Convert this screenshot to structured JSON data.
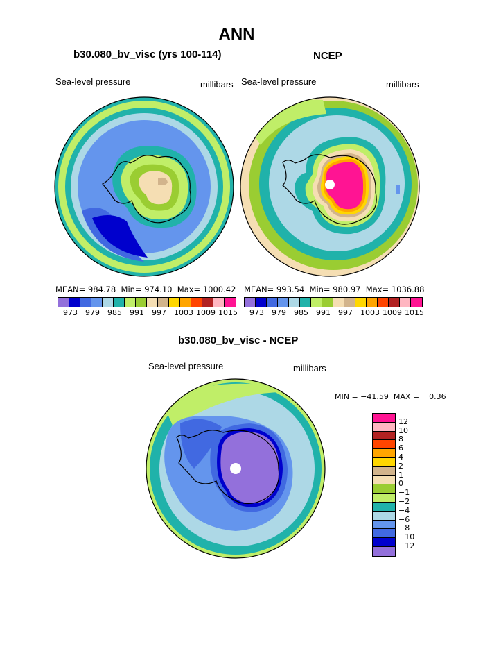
{
  "page": {
    "title": "ANN",
    "left_model": "b30.080_bv_visc (yrs 100-114)",
    "right_obs": "NCEP",
    "diff_title": "b30.080_bv_visc - NCEP"
  },
  "panels": {
    "left": {
      "field": "Sea-level pressure",
      "units": "millibars",
      "mean_label": "MEAN=",
      "mean": "984.78",
      "min_label": "Min=",
      "min": "974.10",
      "max_label": "Max=",
      "max": "1000.42"
    },
    "right": {
      "field": "Sea-level pressure",
      "units": "millibars",
      "mean_label": "MEAN=",
      "mean": "993.54",
      "min_label": "Min=",
      "min": "980.97",
      "max_label": "Max=",
      "max": "1036.88"
    },
    "diff": {
      "field": "Sea-level pressure",
      "units": "millibars",
      "minmax_text": "MIN = −41.59  MAX =    0.36"
    }
  },
  "colorbar_top": {
    "colors": [
      "#9370db",
      "#0000cd",
      "#4169e1",
      "#6495ed",
      "#add8e6",
      "#20b2aa",
      "#c0ee68",
      "#9acd32",
      "#f5deb3",
      "#d2b48c",
      "#ffd700",
      "#ffa500",
      "#ff4500",
      "#b22222",
      "#ffb6c1",
      "#ff1493"
    ],
    "ticks": [
      "973",
      "979",
      "985",
      "991",
      "997",
      "1003",
      "1009",
      "1015"
    ]
  },
  "colorbar_diff": {
    "colors": [
      "#ff1493",
      "#ffb6c1",
      "#b22222",
      "#ff4500",
      "#ffa500",
      "#ffd700",
      "#d2b48c",
      "#f5deb3",
      "#9acd32",
      "#c0ee68",
      "#20b2aa",
      "#add8e6",
      "#6495ed",
      "#4169e1",
      "#0000cd",
      "#9370db"
    ],
    "ticks": [
      "12",
      "10",
      "8",
      "6",
      "4",
      "2",
      "1",
      "0",
      "−1",
      "−2",
      "−4",
      "−6",
      "−8",
      "−10",
      "−12"
    ]
  },
  "map_colors": {
    "pink": "#ff1493",
    "yellow": "#ffd700",
    "orange": "#ffa500",
    "tan": "#d2b48c",
    "wheat": "#f5deb3",
    "olive": "#9acd32",
    "lime": "#c0ee68",
    "teal": "#20b2aa",
    "light_blue": "#add8e6",
    "corn_blue": "#6495ed",
    "royal_blue": "#4169e1",
    "dark_blue": "#0000cd",
    "purple": "#9370db"
  }
}
